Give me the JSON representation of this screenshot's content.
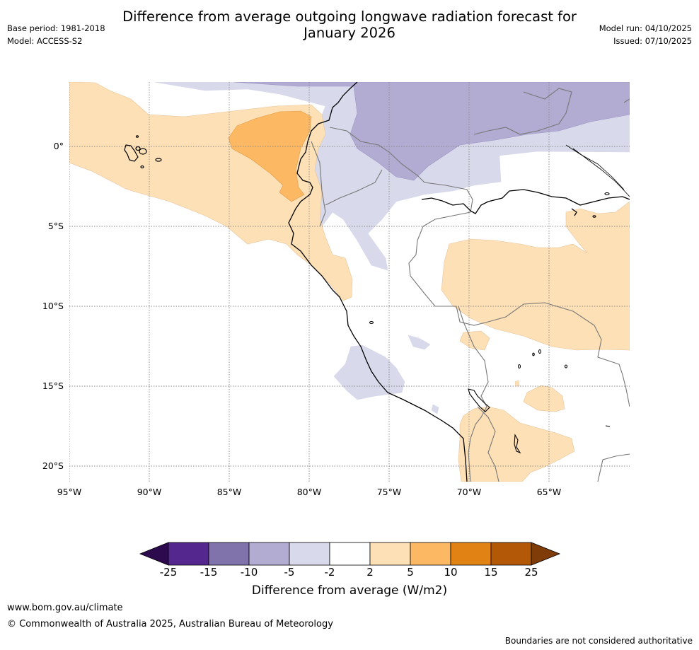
{
  "title_line1": "Difference from average outgoing longwave radiation forecast for",
  "title_line2": "January 2026",
  "meta_left": {
    "base_period": "Base period: 1981-2018",
    "model": "Model: ACCESS-S2"
  },
  "meta_right": {
    "model_run": "Model run: 04/10/2025",
    "issued": "Issued: 07/10/2025"
  },
  "latitude_labels": [
    "0°",
    "5°S",
    "10°S",
    "15°S",
    "20°S"
  ],
  "longitude_labels": [
    "95°W",
    "90°W",
    "85°W",
    "80°W",
    "75°W",
    "70°W",
    "65°W"
  ],
  "colorbar": {
    "title": "Difference from average (W/m2)",
    "ticks": [
      "-25",
      "-15",
      "-10",
      "-5",
      "-2",
      "2",
      "5",
      "10",
      "15",
      "25"
    ],
    "colors": {
      "lt_minus25": "#2d0a4e",
      "m25_m15": "#54278f",
      "m15_m10": "#8073ac",
      "m10_m5": "#b2abd2",
      "m5_m2": "#d8daeb",
      "m2_2": "#ffffff",
      "p2_5": "#fee0b6",
      "p5_10": "#fdb863",
      "p10_15": "#e08214",
      "p15_25": "#b35806",
      "gt_25": "#7f3b08"
    }
  },
  "footer": {
    "url": "www.bom.gov.au/climate",
    "copyright": "© Commonwealth of Australia 2025, Australian Bureau of Meteorology",
    "disclaimer": "Boundaries are not considered authoritative"
  }
}
